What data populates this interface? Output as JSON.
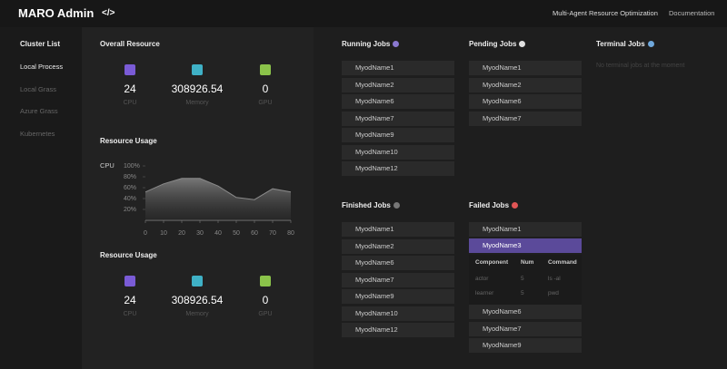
{
  "header": {
    "title": "MARO Admin",
    "icon": "</>",
    "subtitle": "Multi-Agent Resource Optimization",
    "link": "Documentation"
  },
  "sidebar": {
    "title": "Cluster List",
    "items": [
      "Local Process",
      "Local Grass",
      "Azure Grass",
      "Kubernetes"
    ],
    "active": 0
  },
  "overall_resource": {
    "title": "Overall Resource",
    "items": [
      {
        "value": 24,
        "label": "CPU",
        "color": "#7a5bd6"
      },
      {
        "value": 308926.54,
        "label": "Memory",
        "color": "#3fb1c6"
      },
      {
        "value": 0,
        "label": "GPU",
        "color": "#8bc34a"
      }
    ]
  },
  "chart_data": {
    "type": "line",
    "title": "Resource Usage",
    "x": [
      0,
      10,
      20,
      30,
      40,
      50,
      60,
      70,
      80
    ],
    "series": [
      {
        "name": "CPU",
        "color": "#8a8a8a",
        "values": [
          52,
          67,
          77,
          77,
          63,
          42,
          38,
          58,
          52
        ]
      }
    ],
    "xlim": [
      0,
      80
    ],
    "xticks": [
      0,
      10,
      20,
      30,
      40,
      50,
      60,
      70,
      80
    ],
    "ylim": [
      0,
      100
    ],
    "yticks": [
      {
        "value": 20,
        "label": "20%"
      },
      {
        "value": 40,
        "label": "40%"
      },
      {
        "value": 60,
        "label": "60%"
      },
      {
        "value": 80,
        "label": "80%"
      },
      {
        "value": 100,
        "label": "100%"
      }
    ]
  },
  "resource_usage": {
    "title": "Resource Usage",
    "items": [
      {
        "value": 24,
        "label": "CPU",
        "color": "#7a5bd6"
      },
      {
        "value": 308926.54,
        "label": "Memory",
        "color": "#3fb1c6"
      },
      {
        "value": 0,
        "label": "GPU",
        "color": "#8bc34a"
      }
    ]
  },
  "jobs": {
    "running": {
      "title": "Running Jobs",
      "color": "#8a78d0",
      "items": [
        "MyodName1",
        "MyodName2",
        "MyodName6",
        "MyodName7",
        "MyodName9",
        "MyodName10",
        "MyodName12"
      ]
    },
    "pending": {
      "title": "Pending Jobs",
      "color": "#e0e0e0",
      "items": [
        "MyodName1",
        "MyodName2",
        "MyodName6",
        "MyodName7"
      ]
    },
    "terminal": {
      "title": "Terminal Jobs",
      "color": "#6fa8dc",
      "empty_text": "No terminal jobs at the moment"
    },
    "finished": {
      "title": "Finished Jobs",
      "color": "#777777",
      "items": [
        "MyodName1",
        "MyodName2",
        "MyodName6",
        "MyodName7",
        "MyodName9",
        "MyodName10",
        "MyodName12"
      ]
    },
    "failed": {
      "title": "Failed Jobs",
      "color": "#e05555",
      "items_before": [
        "MyodName1",
        "MyodName3"
      ],
      "selected": 1,
      "table": {
        "header": [
          "Component",
          "Num",
          "Command"
        ],
        "rows": [
          [
            "actor",
            5,
            "ls -al"
          ],
          [
            "learner",
            5,
            "pwd"
          ]
        ]
      },
      "items_after": [
        "MyodName6",
        "MyodName7",
        "MyodName9"
      ]
    }
  }
}
